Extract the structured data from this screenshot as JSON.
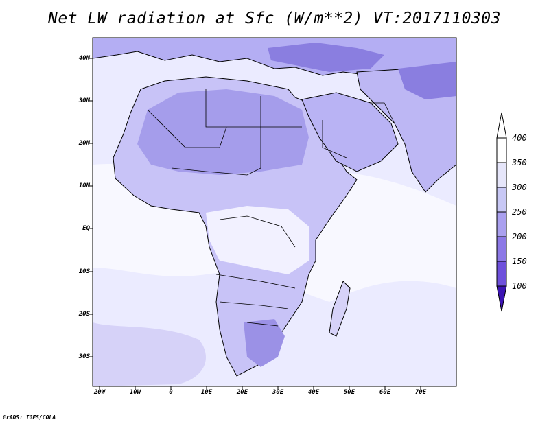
{
  "title": "Net LW radiation at Sfc (W/m**2) VT:2017110303",
  "footer": "GrADS: IGES/COLA",
  "map": {
    "lat_labels": [
      "40N",
      "30N",
      "20N",
      "10N",
      "EQ",
      "10S",
      "20S",
      "30S"
    ],
    "lon_labels": [
      "20W",
      "10W",
      "0",
      "10E",
      "20E",
      "30E",
      "40E",
      "50E",
      "60E",
      "70E"
    ]
  },
  "colorbar": {
    "labels": [
      "400",
      "350",
      "300",
      "250",
      "200",
      "150",
      "100"
    ],
    "colors": [
      "#ffffff",
      "#e6e6fa",
      "#c8c8f5",
      "#aaa0ef",
      "#8c78e6",
      "#6e50dc",
      "#5028c8",
      "#3c14b4"
    ]
  },
  "colors": {
    "ocean": "#ebebff",
    "land": "#c8c3f7",
    "desert": "#a59deb",
    "tropics": "#f6f6ff",
    "cold_pocket": "#8a7ee0",
    "coast": "#000000"
  }
}
